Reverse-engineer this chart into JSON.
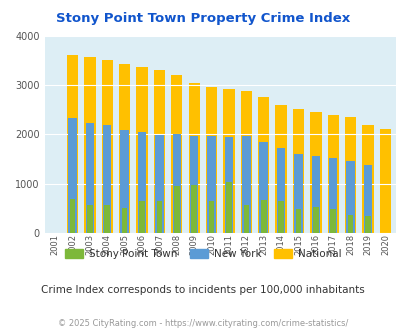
{
  "title": "Stony Point Town Property Crime Index",
  "years": [
    2001,
    2002,
    2003,
    2004,
    2005,
    2006,
    2007,
    2008,
    2009,
    2010,
    2011,
    2012,
    2013,
    2014,
    2015,
    2016,
    2017,
    2018,
    2019,
    2020
  ],
  "stony_point": [
    0,
    680,
    560,
    570,
    510,
    650,
    640,
    960,
    970,
    640,
    1040,
    570,
    670,
    650,
    490,
    530,
    480,
    350,
    340,
    0
  ],
  "new_york": [
    0,
    2330,
    2230,
    2190,
    2100,
    2060,
    1990,
    2000,
    1960,
    1960,
    1940,
    1960,
    1840,
    1720,
    1610,
    1560,
    1530,
    1460,
    1370,
    0
  ],
  "national": [
    0,
    3620,
    3580,
    3520,
    3430,
    3370,
    3310,
    3220,
    3050,
    2960,
    2930,
    2890,
    2760,
    2600,
    2510,
    2460,
    2400,
    2360,
    2200,
    2110
  ],
  "stony_color": "#7db83a",
  "ny_color": "#5b9bd5",
  "national_color": "#ffc000",
  "bg_color": "#ddeef5",
  "title_color": "#1155cc",
  "footer_note": "Crime Index corresponds to incidents per 100,000 inhabitants",
  "copyright": "© 2025 CityRating.com - https://www.cityrating.com/crime-statistics/",
  "ylim": [
    0,
    4000
  ],
  "yticks": [
    0,
    1000,
    2000,
    3000,
    4000
  ]
}
